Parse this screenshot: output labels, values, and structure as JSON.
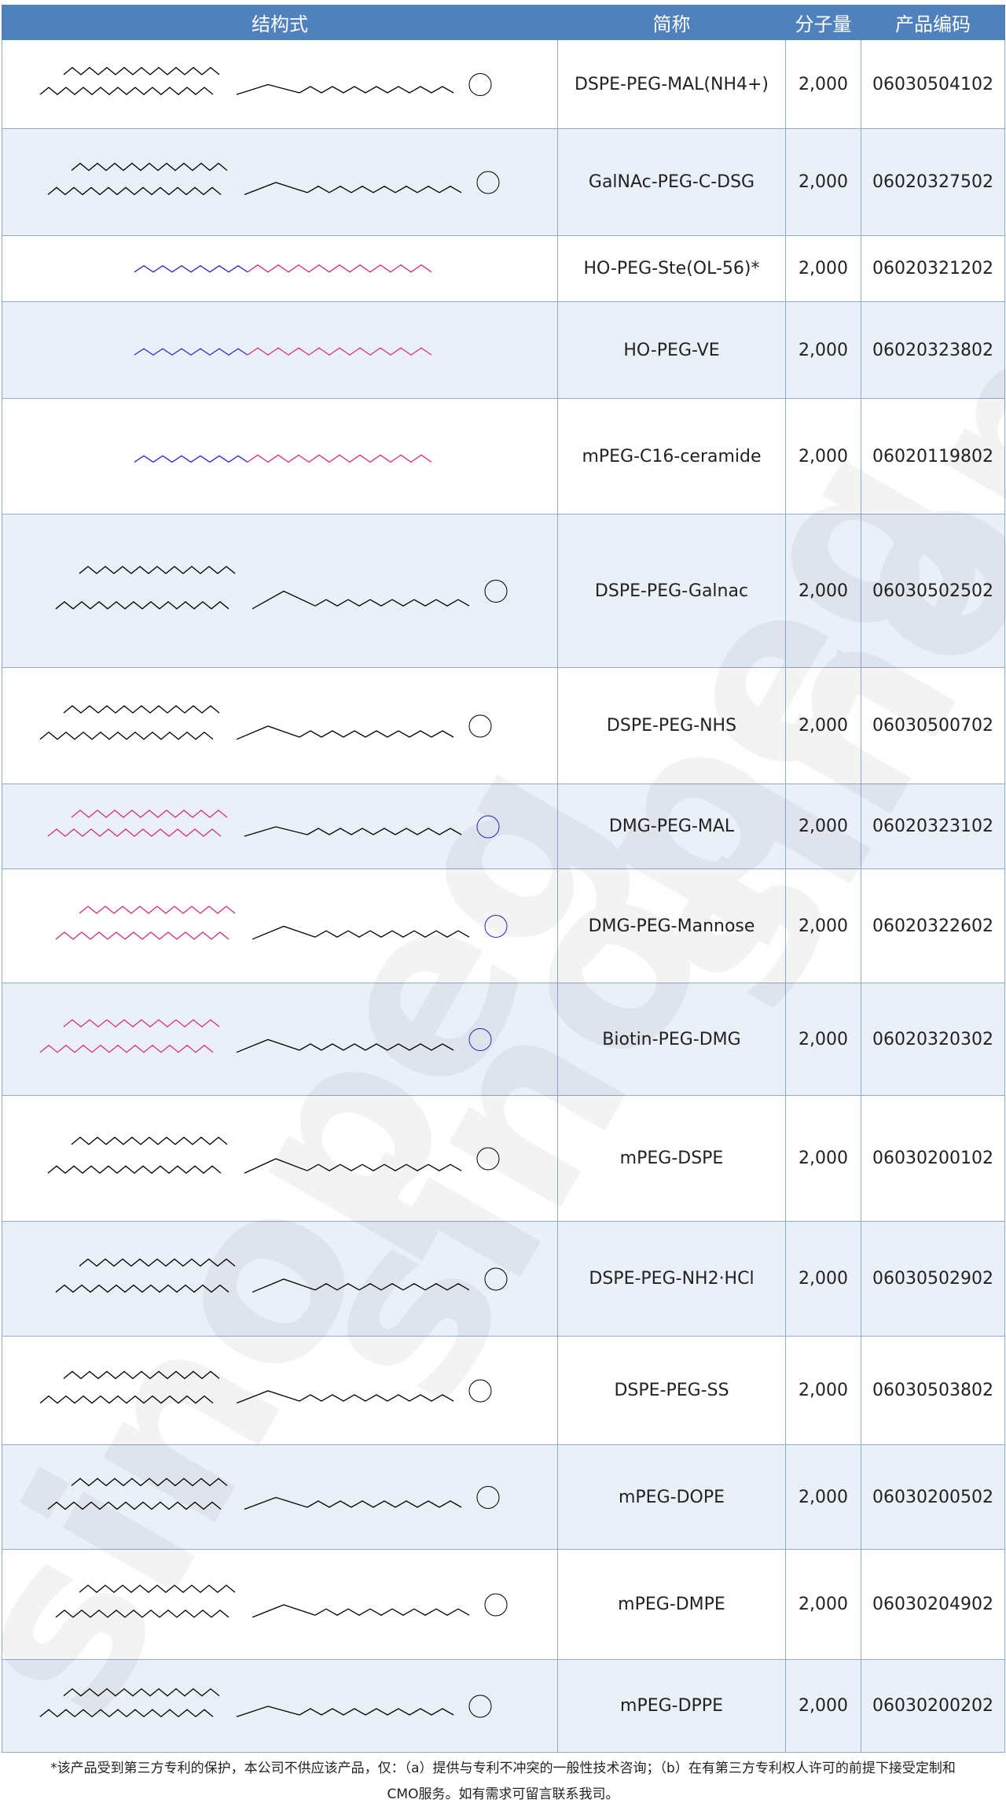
{
  "headers": [
    "结构式",
    "简称",
    "分子量",
    "产品编码"
  ],
  "rows": [
    {
      "name": "DSPE-PEG-MAL(NH4+)",
      "mw": "2,000",
      "code": "06030504102",
      "accent": "#000000"
    },
    {
      "name": "GalNAc-PEG-C-DSG",
      "mw": "2,000",
      "code": "06020327502",
      "accent": "#000000"
    },
    {
      "name": "HO-PEG-Ste(OL-56)*",
      "mw": "2,000",
      "code": "06020321202",
      "accent": "#d6307a"
    },
    {
      "name": "HO-PEG-VE",
      "mw": "2,000",
      "code": "06020323802",
      "accent": "#d6307a"
    },
    {
      "name": "mPEG-C16-ceramide",
      "mw": "2,000",
      "code": "06020119802",
      "accent": "#d6307a"
    },
    {
      "name": "DSPE-PEG-Galnac",
      "mw": "2,000",
      "code": "06030502502",
      "accent": "#000000"
    },
    {
      "name": "DSPE-PEG-NHS",
      "mw": "2,000",
      "code": "06030500702",
      "accent": "#000000"
    },
    {
      "name": "DMG-PEG-MAL",
      "mw": "2,000",
      "code": "06020323102",
      "accent": "#d6307a"
    },
    {
      "name": "DMG-PEG-Mannose",
      "mw": "2,000",
      "code": "06020322602",
      "accent": "#d6307a"
    },
    {
      "name": "Biotin-PEG-DMG",
      "mw": "2,000",
      "code": "06020320302",
      "accent": "#d6307a"
    },
    {
      "name": "mPEG-DSPE",
      "mw": "2,000",
      "code": "06030200102",
      "accent": "#000000"
    },
    {
      "name": "DSPE-PEG-NH2·HCl",
      "mw": "2,000",
      "code": "06030502902",
      "accent": "#000000"
    },
    {
      "name": "DSPE-PEG-SS",
      "mw": "2,000",
      "code": "06030503802",
      "accent": "#000000"
    },
    {
      "name": "mPEG-DOPE",
      "mw": "2,000",
      "code": "06030200502",
      "accent": "#000000"
    },
    {
      "name": "mPEG-DMPE",
      "mw": "2,000",
      "code": "06030204902",
      "accent": "#000000"
    },
    {
      "name": "mPEG-DPPE",
      "mw": "2,000",
      "code": "06030200202",
      "accent": "#000000"
    }
  ],
  "footer": {
    "line1": "*该产品受到第三方专利的保护，本公司不供应该产品，仅：（a）提供与专利不冲突的一般性技术咨询；（b）在有第三方专利权人许可的前提下接受定制和",
    "line2": "CMO服务。如有需求可留言联系我司。"
  },
  "colors": {
    "header": "#4f81bd",
    "alt_row": "#eaf0f8",
    "lipid_accent": "#d6307a",
    "head_group": "#2a2acc"
  }
}
